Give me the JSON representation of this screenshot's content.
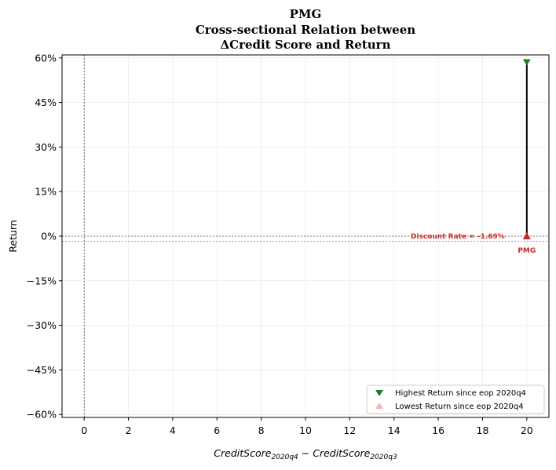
{
  "chart_data": {
    "type": "scatter",
    "title_lines": [
      "PMG",
      "Cross-sectional Relation between",
      "ΔCredit Score and Return"
    ],
    "xlabel": "CreditScore_{2020q4} − CreditScore_{2020q3}",
    "xlabel_parts": {
      "base1": "CreditScore",
      "sub1": "2020q4",
      "minus": " − ",
      "base2": "CreditScore",
      "sub2": "2020q3"
    },
    "ylabel": "Return",
    "xlim": [
      -1,
      21
    ],
    "ylim": [
      -0.61,
      0.61
    ],
    "xticks": [
      0,
      2,
      4,
      6,
      8,
      10,
      12,
      14,
      16,
      18,
      20
    ],
    "xtick_labels": [
      "0",
      "2",
      "4",
      "6",
      "8",
      "10",
      "12",
      "14",
      "16",
      "18",
      "20"
    ],
    "yticks": [
      0.6,
      0.45,
      0.3,
      0.15,
      0,
      -0.15,
      -0.3,
      -0.45,
      -0.6
    ],
    "ytick_labels": [
      "60%",
      "45%",
      "30%",
      "15%",
      "0%",
      "−15%",
      "−30%",
      "−45%",
      "−60%"
    ],
    "grid": true,
    "series": [
      {
        "name": "Highest Return since eop 2020q4",
        "marker": "triangle-down",
        "color": "#1f7a1f",
        "points": [
          {
            "x": 20,
            "y": 0.585
          }
        ]
      },
      {
        "name": "Lowest Return since eop 2020q4",
        "marker": "triangle-up",
        "color": "#f4b6b6",
        "points": [
          {
            "x": 20,
            "y": 0.0
          }
        ]
      }
    ],
    "range_line": {
      "x": 20,
      "y_from": 0.0,
      "y_to": 0.585,
      "color": "#000000"
    },
    "current_point": {
      "x": 20,
      "y": 0.0,
      "color": "#c62828",
      "label": "PMG"
    },
    "discount_rate": {
      "value": -0.0169,
      "label": "Discount Rate = -1.69%",
      "color": "#d32f2f"
    },
    "zero_lines": {
      "x": 0,
      "y": 0
    },
    "legend_position": "lower-right"
  }
}
